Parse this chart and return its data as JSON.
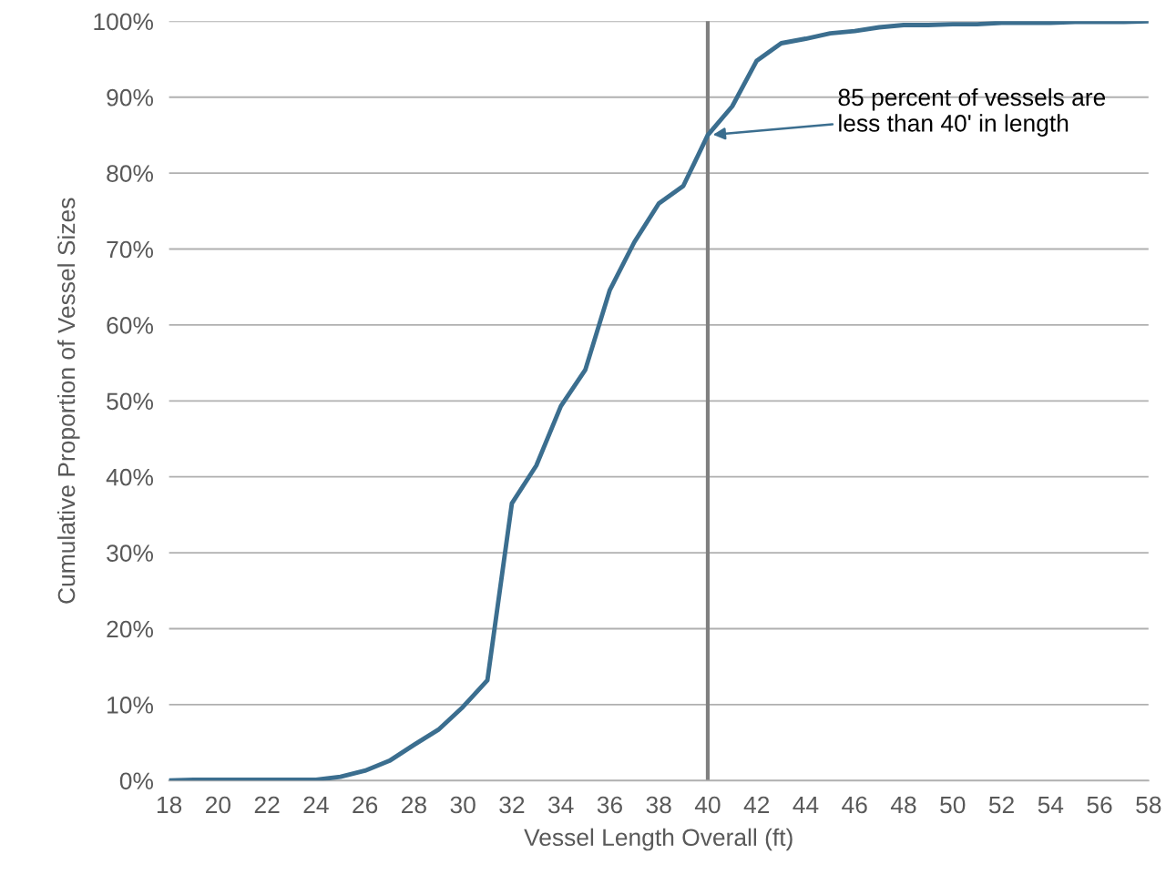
{
  "chart_data": {
    "type": "line",
    "xlabel": "Vessel Length Overall (ft)",
    "ylabel": "Cumulative Proportion of Vessel Sizes",
    "x": [
      18,
      19,
      20,
      21,
      22,
      23,
      24,
      25,
      26,
      27,
      28,
      29,
      30,
      31,
      32,
      33,
      34,
      35,
      36,
      37,
      38,
      39,
      40,
      41,
      42,
      43,
      44,
      45,
      46,
      47,
      48,
      49,
      50,
      51,
      52,
      53,
      54,
      55,
      56,
      57,
      58
    ],
    "series": [
      {
        "color": "#3b6e8f",
        "values": [
          0,
          0.1,
          0.1,
          0.1,
          0.1,
          0.1,
          0.1,
          0.5,
          1.3,
          2.6,
          4.7,
          6.7,
          9.7,
          13.2,
          36.5,
          41.5,
          49.3,
          54.1,
          64.6,
          70.9,
          76.0,
          78.3,
          85.0,
          88.8,
          94.8,
          97.1,
          97.7,
          98.4,
          98.7,
          99.2,
          99.5,
          99.5,
          99.6,
          99.6,
          99.8,
          99.8,
          99.8,
          99.9,
          99.9,
          99.9,
          100
        ]
      }
    ],
    "xlim": [
      18,
      58
    ],
    "xticks": [
      18,
      20,
      22,
      24,
      26,
      28,
      30,
      32,
      34,
      36,
      38,
      40,
      42,
      44,
      46,
      48,
      50,
      52,
      54,
      56,
      58
    ],
    "ylim": [
      0,
      100
    ],
    "yticks": [
      {
        "value": 0,
        "label": "0%"
      },
      {
        "value": 10,
        "label": "10%"
      },
      {
        "value": 20,
        "label": "20%"
      },
      {
        "value": 30,
        "label": "30%"
      },
      {
        "value": 40,
        "label": "40%"
      },
      {
        "value": 50,
        "label": "50%"
      },
      {
        "value": 60,
        "label": "60%"
      },
      {
        "value": 70,
        "label": "70%"
      },
      {
        "value": 80,
        "label": "80%"
      },
      {
        "value": 90,
        "label": "90%"
      },
      {
        "value": 100,
        "label": "100%"
      }
    ],
    "grid": "y",
    "legend": false,
    "marker": "none",
    "line_style": "solid",
    "ref_lines": [
      {
        "axis": "x",
        "value": 40,
        "color": "#808080",
        "line_style": "solid"
      }
    ],
    "annotations": [
      {
        "text": "85 percent of vessels are\nless than 40' in length",
        "x": 40,
        "y": 85
      }
    ]
  }
}
